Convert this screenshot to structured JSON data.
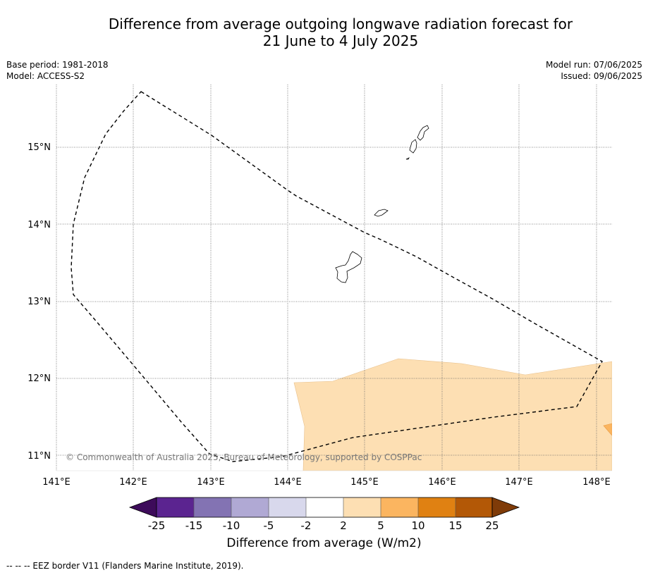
{
  "title_line1": "Difference from average outgoing longwave radiation forecast for",
  "title_line2": "21 June to 4 July 2025",
  "meta": {
    "base_period": "Base period: 1981-2018",
    "model": "Model: ACCESS-S2",
    "model_run": "Model run: 07/06/2025",
    "issued": "Issued: 09/06/2025"
  },
  "map": {
    "lon_labels": [
      "141°E",
      "142°E",
      "143°E",
      "144°E",
      "145°E",
      "146°E",
      "147°E",
      "148°E"
    ],
    "lat_labels": [
      "15°N",
      "14°N",
      "13°N",
      "12°N",
      "11°N"
    ],
    "copyright": "© Commonwealth of Australia 2025, Bureau of Meteorology, supported by COSPPac",
    "anomaly_fill_color": "#fddfb3",
    "warm_fill_color": "#fbb560"
  },
  "colorbar": {
    "ticks": [
      "-25",
      "-15",
      "-10",
      "-5",
      "-2",
      "2",
      "5",
      "10",
      "15",
      "25"
    ],
    "colors": [
      "#3d0b5a",
      "#5b2490",
      "#8373b3",
      "#b0a9d4",
      "#d8d8ec",
      "#ffffff",
      "#fddfb3",
      "#fbb560",
      "#e08112",
      "#b35806",
      "#7f3b08"
    ],
    "label": "Difference from average (W/m2)"
  },
  "footnote": "--  --  -- EEZ border V11 (Flanders Marine Institute, 2019)."
}
